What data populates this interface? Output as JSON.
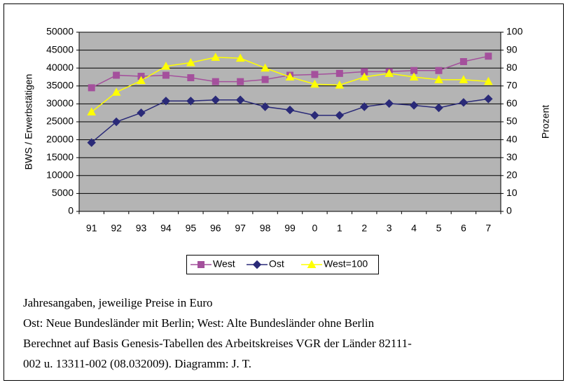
{
  "chart_data": {
    "type": "line",
    "categories": [
      "91",
      "92",
      "93",
      "94",
      "95",
      "96",
      "97",
      "98",
      "99",
      "0",
      "1",
      "2",
      "3",
      "4",
      "5",
      "6",
      "7"
    ],
    "series": [
      {
        "name": "West",
        "color": "#a4509c",
        "marker": "square",
        "values": [
          34500,
          38000,
          37700,
          38000,
          37300,
          36200,
          36200,
          36800,
          38000,
          38200,
          38500,
          39000,
          39000,
          39300,
          39300,
          41800,
          43300
        ]
      },
      {
        "name": "Ost",
        "color": "#2a2a78",
        "marker": "diamond",
        "values": [
          19200,
          25000,
          27500,
          30800,
          30800,
          31100,
          31100,
          29200,
          28300,
          26800,
          26800,
          29200,
          30100,
          29600,
          28900,
          30400,
          31400
        ]
      },
      {
        "name": "West=100",
        "color": "#ffff00",
        "marker": "triangle",
        "axis": "y2",
        "values": [
          55.5,
          66.5,
          73,
          81,
          83,
          86,
          85.5,
          80,
          75,
          71,
          70.5,
          75,
          77,
          75,
          73.5,
          73.5,
          72.5
        ]
      }
    ],
    "ylabel": "BWS / Erwerbstätigen",
    "y2label": "Prozent",
    "ylim": [
      0,
      50000
    ],
    "yticks": [
      0,
      5000,
      10000,
      15000,
      20000,
      25000,
      30000,
      35000,
      40000,
      45000,
      50000
    ],
    "y2lim": [
      0,
      100
    ],
    "y2ticks": [
      0,
      10,
      20,
      30,
      40,
      50,
      60,
      70,
      80,
      90,
      100
    ],
    "grid": true,
    "legend": "bottom",
    "caption": [
      "Jahresangaben, jeweilige Preise in Euro",
      "Ost: Neue Bundesländer mit Berlin; West: Alte Bundesländer ohne Berlin",
      "Berechnet auf Basis Genesis-Tabellen des Arbeitskreises VGR der Länder 82111-",
      "002 u. 13311-002   (08.032009). Diagramm: J. T."
    ]
  }
}
